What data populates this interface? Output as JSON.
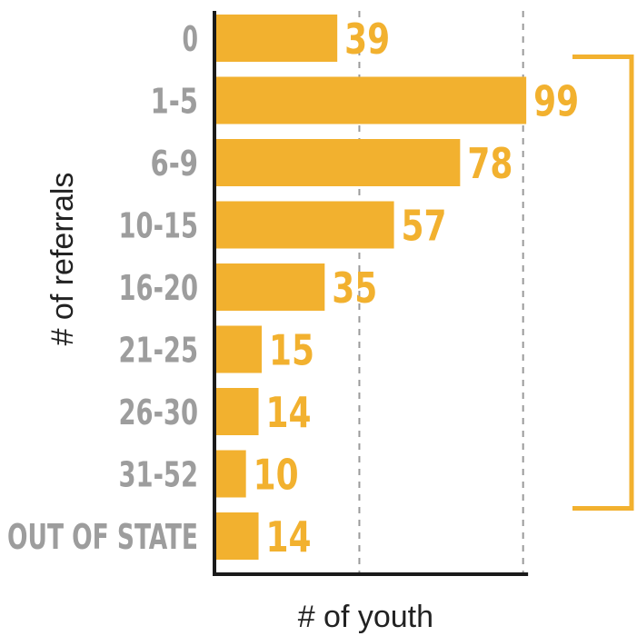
{
  "chart_data": {
    "type": "bar",
    "orientation": "horizontal",
    "categories": [
      "0",
      "1-5",
      "6-9",
      "10-15",
      "16-20",
      "21-25",
      "26-30",
      "31-52",
      "OUT OF STATE"
    ],
    "values": [
      39,
      99,
      78,
      57,
      35,
      15,
      14,
      10,
      14
    ],
    "value_labels": [
      "39",
      "99",
      "78",
      "57",
      "35",
      "15",
      "14",
      "10",
      "14"
    ],
    "title": "",
    "xlabel": "# of youth",
    "ylabel": "# of referrals",
    "xlim": [
      0,
      100
    ],
    "gridlines_x": [
      46,
      98
    ],
    "grid": "vertical dashed",
    "legend": "none",
    "bracket_span": [
      "1-5",
      "31-52"
    ],
    "colors": {
      "bar": "#F2B12F",
      "value_label": "#F2B12F",
      "category_label": "#9D9D9D",
      "axis": "#1a1a1a",
      "gridline": "#9a9a9a",
      "bracket": "#F2B12F",
      "axis_title": "#222222"
    }
  }
}
